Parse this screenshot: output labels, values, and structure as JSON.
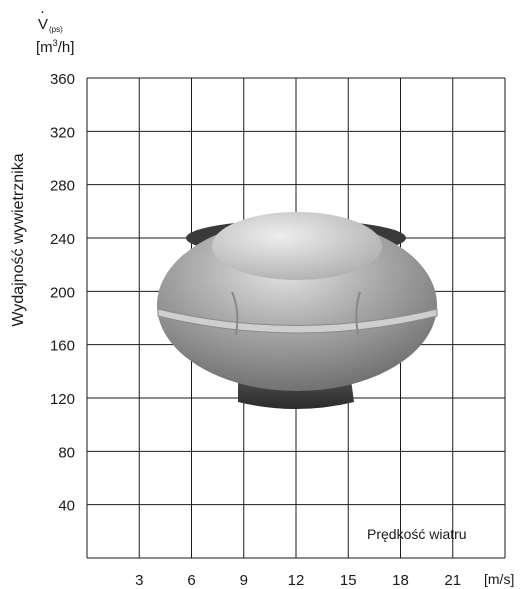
{
  "chart_data": {
    "type": "line",
    "title": "",
    "ylabel": "Wydajność wywietrznika",
    "ysymbol_main": "V",
    "ysymbol_dot": "·",
    "ysymbol_sub": "(ps)",
    "yunit_pre": "[m",
    "yunit_sup": "3",
    "yunit_post": "/h]",
    "xlabel": "Prędkość wiatru",
    "xunit": "[m/s]",
    "xlim": [
      0,
      24
    ],
    "ylim": [
      0,
      360
    ],
    "xticks": [
      3,
      6,
      9,
      12,
      15,
      18,
      21
    ],
    "yticks": [
      40,
      80,
      120,
      160,
      200,
      240,
      280,
      320,
      360
    ],
    "grid": true,
    "series": []
  },
  "image": {
    "icon": "roof-ventilator-photo",
    "body_color": "#9a9a9a",
    "highlight_color": "#d8d8d8",
    "base_color": "#3a3a3a"
  }
}
